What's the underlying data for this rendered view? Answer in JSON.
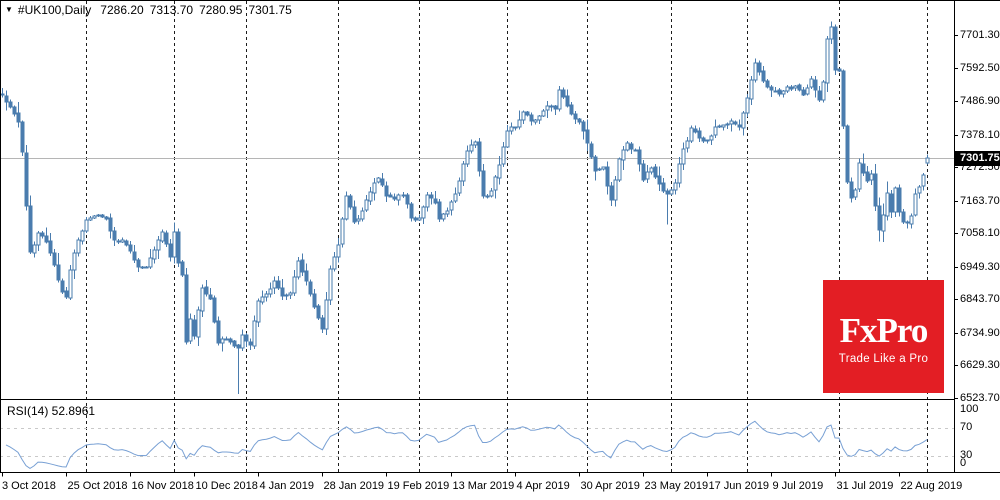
{
  "header": {
    "dropdown_icon": "▼",
    "symbol": "#UK100,Daily",
    "open": "7286.20",
    "high": "7313.70",
    "low": "7280.95",
    "close": "7301.75"
  },
  "price_axis": {
    "tag": "7301.75",
    "ticks": [
      "7701.30",
      "7592.50",
      "7486.90",
      "7378.10",
      "7272.50",
      "7163.70",
      "7058.10",
      "6949.30",
      "6843.70",
      "6734.90",
      "6629.30",
      "6523.70"
    ]
  },
  "date_axis": {
    "labels": [
      "3 Oct 2018",
      "25 Oct 2018",
      "16 Nov 2018",
      "10 Dec 2018",
      "4 Jan 2019",
      "28 Jan 2019",
      "19 Feb 2019",
      "13 Mar 2019",
      "4 Apr 2019",
      "30 Apr 2019",
      "23 May 2019",
      "17 Jun 2019",
      "9 Jul 2019",
      "31 Jul 2019",
      "22 Aug 2019"
    ],
    "ticks_every_n_candles": 16
  },
  "rsi_pane": {
    "label": "RSI(14) 52.8961",
    "level_labels": [
      "100",
      "70",
      "30",
      "0"
    ]
  },
  "logo": {
    "title": "FxPro",
    "tagline": "Trade Like a Pro",
    "background": "#e31e24",
    "text_color": "#ffffff"
  },
  "colors": {
    "candle": "#4a7cae",
    "candle_fill_up": "#ffffff",
    "rsi_line": "#78a0d4",
    "grid_vertical": "#1c1c1c",
    "grid_dashed_gray": "#c9c9c9",
    "current_price_line": "#b5b5b5",
    "tag_bg": "#000000",
    "border": "#000000",
    "axis_text": "#000000"
  },
  "chart_data": {
    "type": "candlestick",
    "title": "#UK100 Daily",
    "symbol": "#UK100",
    "timeframe": "Daily",
    "current_price": 7301.75,
    "last_candle": {
      "open": 7286.2,
      "high": 7313.7,
      "low": 7280.95,
      "close": 7301.75
    },
    "y_tick_values": [
      7701.3,
      7592.5,
      7486.9,
      7378.1,
      7272.5,
      7163.7,
      7058.1,
      6949.3,
      6843.7,
      6734.9,
      6629.3,
      6523.7
    ],
    "x_tick_labels": [
      "3 Oct 2018",
      "25 Oct 2018",
      "16 Nov 2018",
      "10 Dec 2018",
      "4 Jan 2019",
      "28 Jan 2019",
      "19 Feb 2019",
      "13 Mar 2019",
      "4 Apr 2019",
      "30 Apr 2019",
      "23 May 2019",
      "17 Jun 2019",
      "9 Jul 2019",
      "31 Jul 2019",
      "22 Aug 2019"
    ],
    "candle_count": 232,
    "seed": 20190822,
    "month_grid_candle_indices": [
      21,
      43,
      61,
      84,
      104,
      126,
      146,
      167,
      186,
      209,
      231
    ],
    "price_anchors": [
      [
        0,
        7505
      ],
      [
        2,
        7468
      ],
      [
        4,
        7418
      ],
      [
        5,
        7320
      ],
      [
        6,
        7146
      ],
      [
        7,
        6996
      ],
      [
        9,
        7058
      ],
      [
        11,
        7029
      ],
      [
        13,
        6955
      ],
      [
        15,
        6867
      ],
      [
        16,
        6851
      ],
      [
        17,
        6939
      ],
      [
        19,
        7035
      ],
      [
        21,
        7100
      ],
      [
        24,
        7117
      ],
      [
        26,
        7104
      ],
      [
        28,
        7036
      ],
      [
        30,
        7034
      ],
      [
        32,
        7000
      ],
      [
        34,
        6948
      ],
      [
        36,
        6947
      ],
      [
        38,
        7004
      ],
      [
        40,
        7060
      ],
      [
        42,
        6980
      ],
      [
        43,
        7062
      ],
      [
        44,
        6962
      ],
      [
        45,
        6922
      ],
      [
        46,
        6704
      ],
      [
        47,
        6778
      ],
      [
        48,
        6722
      ],
      [
        50,
        6880
      ],
      [
        52,
        6845
      ],
      [
        54,
        6701
      ],
      [
        56,
        6712
      ],
      [
        58,
        6690
      ],
      [
        59,
        6685
      ],
      [
        60,
        6728
      ],
      [
        62,
        6693
      ],
      [
        64,
        6837
      ],
      [
        66,
        6861
      ],
      [
        68,
        6903
      ],
      [
        70,
        6855
      ],
      [
        72,
        6862
      ],
      [
        74,
        6968
      ],
      [
        76,
        6901
      ],
      [
        78,
        6819
      ],
      [
        80,
        6747
      ],
      [
        82,
        6942
      ],
      [
        84,
        7020
      ],
      [
        86,
        7177
      ],
      [
        88,
        7094
      ],
      [
        90,
        7129
      ],
      [
        92,
        7190
      ],
      [
        94,
        7237
      ],
      [
        96,
        7179
      ],
      [
        98,
        7167
      ],
      [
        100,
        7183
      ],
      [
        102,
        7107
      ],
      [
        104,
        7107
      ],
      [
        106,
        7183
      ],
      [
        108,
        7157
      ],
      [
        109,
        7104
      ],
      [
        111,
        7131
      ],
      [
        112,
        7159
      ],
      [
        114,
        7228
      ],
      [
        116,
        7324
      ],
      [
        118,
        7355
      ],
      [
        120,
        7177
      ],
      [
        122,
        7194
      ],
      [
        124,
        7279
      ],
      [
        126,
        7391
      ],
      [
        128,
        7401
      ],
      [
        130,
        7451
      ],
      [
        132,
        7421
      ],
      [
        134,
        7437
      ],
      [
        136,
        7470
      ],
      [
        138,
        7460
      ],
      [
        139,
        7523
      ],
      [
        141,
        7471
      ],
      [
        143,
        7428
      ],
      [
        144,
        7418
      ],
      [
        146,
        7351
      ],
      [
        148,
        7260
      ],
      [
        150,
        7271
      ],
      [
        152,
        7164
      ],
      [
        154,
        7297
      ],
      [
        156,
        7349
      ],
      [
        158,
        7328
      ],
      [
        160,
        7231
      ],
      [
        162,
        7269
      ],
      [
        164,
        7218
      ],
      [
        166,
        7185
      ],
      [
        168,
        7220
      ],
      [
        170,
        7332
      ],
      [
        172,
        7398
      ],
      [
        174,
        7368
      ],
      [
        176,
        7357
      ],
      [
        178,
        7404
      ],
      [
        180,
        7408
      ],
      [
        182,
        7422
      ],
      [
        184,
        7402
      ],
      [
        186,
        7497
      ],
      [
        188,
        7609
      ],
      [
        190,
        7553
      ],
      [
        192,
        7523
      ],
      [
        194,
        7510
      ],
      [
        196,
        7532
      ],
      [
        198,
        7535
      ],
      [
        200,
        7508
      ],
      [
        202,
        7557
      ],
      [
        204,
        7489
      ],
      [
        205,
        7549
      ],
      [
        206,
        7687
      ],
      [
        207,
        7727
      ],
      [
        208,
        7587
      ],
      [
        209,
        7585
      ],
      [
        210,
        7407
      ],
      [
        211,
        7224
      ],
      [
        212,
        7172
      ],
      [
        213,
        7199
      ],
      [
        214,
        7286
      ],
      [
        215,
        7254
      ],
      [
        216,
        7227
      ],
      [
        217,
        7250
      ],
      [
        218,
        7147
      ],
      [
        219,
        7067
      ],
      [
        220,
        7117
      ],
      [
        221,
        7189
      ],
      [
        222,
        7125
      ],
      [
        223,
        7204
      ],
      [
        224,
        7128
      ],
      [
        225,
        7095
      ],
      [
        226,
        7090
      ],
      [
        227,
        7114
      ],
      [
        228,
        7184
      ],
      [
        229,
        7207
      ],
      [
        230,
        7247
      ],
      [
        231,
        7301.75
      ]
    ],
    "candle_overrides": {
      "59": {
        "low": 6536
      },
      "166": {
        "low": 7085
      },
      "207": {
        "high": 7745
      },
      "219": {
        "low": 7030
      },
      "231": {
        "open": 7286.2,
        "high": 7313.7,
        "low": 7280.95,
        "close": 7301.75
      }
    },
    "indicator": {
      "name": "RSI",
      "period": 14,
      "value": 52.8961,
      "levels": [
        70,
        30
      ],
      "range": [
        0,
        100
      ],
      "derived_from_closes": true
    }
  }
}
